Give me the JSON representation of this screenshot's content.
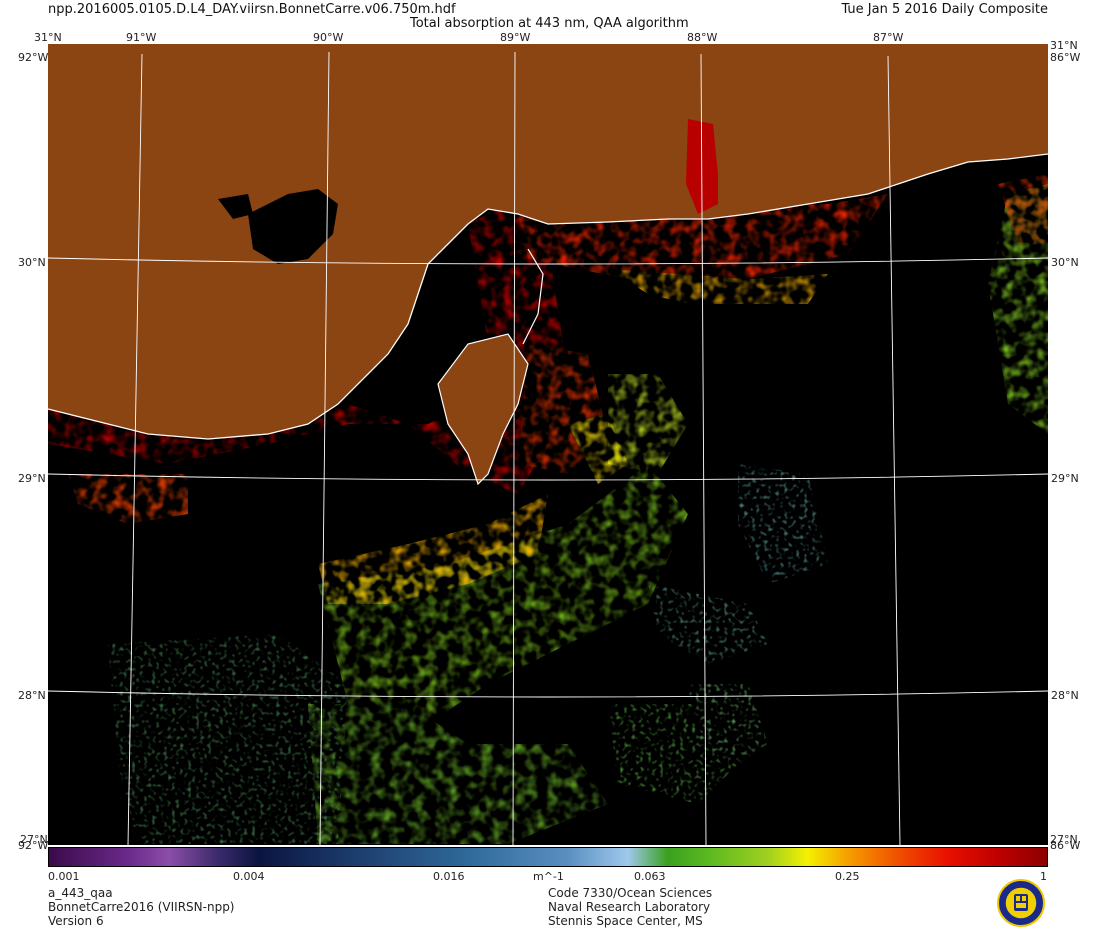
{
  "header": {
    "filename": "npp.2016005.0105.D.L4_DAY.viirsn.BonnetCarre.v06.750m.hdf",
    "title": "Total absorption at 443 nm, QAA algorithm",
    "date": "Tue Jan  5 2016 Daily Composite"
  },
  "axes": {
    "lon_labels": [
      "91°W",
      "90°W",
      "89°W",
      "88°W",
      "87°W"
    ],
    "lat_labels": [
      "31°N",
      "30°N",
      "29°N",
      "28°N"
    ],
    "corner_lon_left": "92°W",
    "corner_lon_right": "86°W",
    "corner_lat_top": "31°N",
    "corner_lat_bottom": "27°N"
  },
  "colorbar": {
    "ticks": [
      "0.001",
      "0.004",
      "0.016",
      "m^-1",
      "0.063",
      "0.25",
      "1"
    ],
    "scale": "log"
  },
  "footer": {
    "product": "a_443_qaa",
    "project": "BonnetCarre2016 (VIIRSN-npp)",
    "version": "Version 6",
    "org1": "Code 7330/Ocean Sciences",
    "org2": "Naval Research Laboratory",
    "org3": "Stennis Space Center, MS"
  },
  "colors": {
    "land": "#8b4513",
    "no_data": "#000000",
    "coastline": "#ffffff",
    "graticule": "#ffffff"
  }
}
